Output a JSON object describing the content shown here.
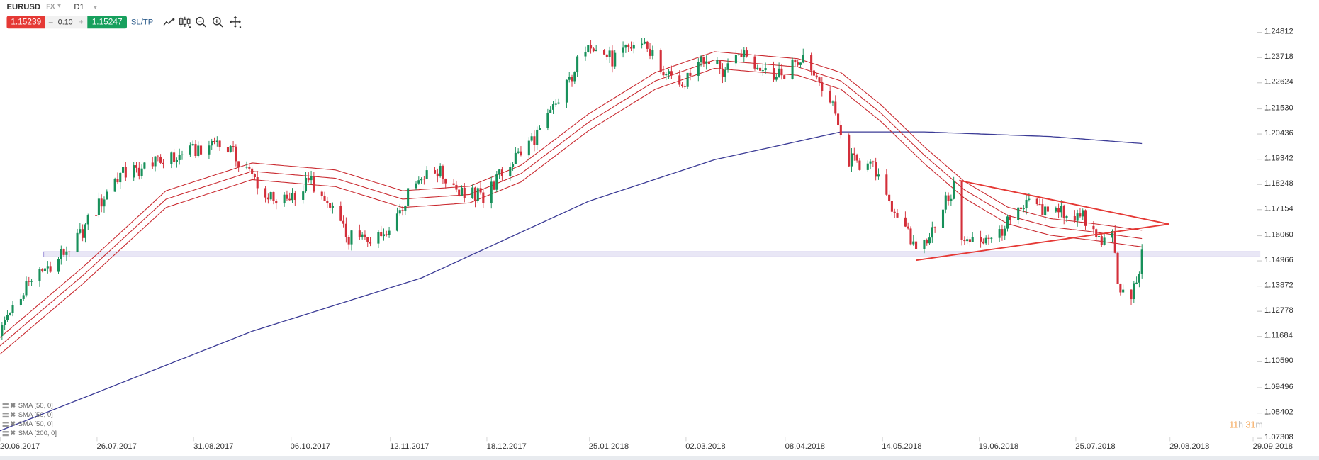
{
  "header": {
    "symbol": "EURUSD",
    "market": "FX",
    "timeframe": "D1"
  },
  "trade": {
    "sell_price": "1.15239",
    "minus": "–",
    "volume": "0.10",
    "plus": "+",
    "buy_price": "1.15247",
    "sltp_label": "SL/TP"
  },
  "tools": [
    "line-chart-icon",
    "candles-icon",
    "zoom-out-icon",
    "zoom-in-icon",
    "crosshair-icon"
  ],
  "legend": [
    {
      "label": "SMA [50, 0]"
    },
    {
      "label": "SMA [50, 0]"
    },
    {
      "label": "SMA [50, 0]"
    },
    {
      "label": "SMA [200, 0]"
    }
  ],
  "countdown": {
    "hours": "11",
    "h": "h",
    "minutes": "31",
    "m": "m"
  },
  "colors": {
    "up": "#17905a",
    "down": "#d32f3a",
    "sma50": "#c9282e",
    "sma200": "#3b3b96",
    "band": "#9c90d8",
    "triangle": "#e53935"
  },
  "chart_data": {
    "type": "candlestick",
    "title": "EURUSD D1",
    "y_ticks": [
      "1.24812",
      "1.23718",
      "1.22624",
      "1.21530",
      "1.20436",
      "1.19342",
      "1.18248",
      "1.17154",
      "1.16060",
      "1.14966",
      "1.13872",
      "1.12778",
      "1.11684",
      "1.10590",
      "1.09496",
      "1.08402",
      "1.07308"
    ],
    "ylim": [
      1.07308,
      1.24812
    ],
    "x_ticks": [
      "20.06.2017",
      "26.07.2017",
      "31.08.2017",
      "06.10.2017",
      "12.11.2017",
      "18.12.2017",
      "25.01.2018",
      "02.03.2018",
      "08.04.2018",
      "14.05.2018",
      "19.06.2018",
      "25.07.2018",
      "29.08.2018",
      "29.09.2018"
    ],
    "x_tick_days": [
      0,
      36,
      72,
      108,
      145,
      181,
      219,
      255,
      292,
      328,
      364,
      400,
      435,
      466
    ],
    "close_path_day_price": [
      [
        -9,
        1.117
      ],
      [
        1,
        1.139
      ],
      [
        19,
        1.157
      ],
      [
        35,
        1.186
      ],
      [
        60,
        1.195
      ],
      [
        73,
        1.202
      ],
      [
        88,
        1.182
      ],
      [
        94,
        1.173
      ],
      [
        107,
        1.184
      ],
      [
        121,
        1.159
      ],
      [
        132,
        1.159
      ],
      [
        151,
        1.191
      ],
      [
        163,
        1.179
      ],
      [
        171,
        1.177
      ],
      [
        182,
        1.193
      ],
      [
        191,
        1.204
      ],
      [
        201,
        1.222
      ],
      [
        210,
        1.245
      ],
      [
        219,
        1.236
      ],
      [
        230,
        1.245
      ],
      [
        238,
        1.231
      ],
      [
        244,
        1.222
      ],
      [
        251,
        1.238
      ],
      [
        260,
        1.231
      ],
      [
        268,
        1.24
      ],
      [
        279,
        1.227
      ],
      [
        291,
        1.238
      ],
      [
        301,
        1.215
      ],
      [
        307,
        1.193
      ],
      [
        316,
        1.189
      ],
      [
        329,
        1.16
      ],
      [
        333,
        1.153
      ],
      [
        341,
        1.171
      ],
      [
        348,
        1.184
      ],
      [
        349,
        1.157
      ],
      [
        357,
        1.159
      ],
      [
        365,
        1.164
      ],
      [
        373,
        1.173
      ],
      [
        385,
        1.171
      ],
      [
        394,
        1.168
      ],
      [
        401,
        1.157
      ],
      [
        405,
        1.16
      ],
      [
        407,
        1.139
      ],
      [
        410,
        1.133
      ],
      [
        413,
        1.137
      ],
      [
        416,
        1.151
      ]
    ],
    "sma50_day_price": [
      [
        -9,
        1.1125
      ],
      [
        22,
        1.143
      ],
      [
        53,
        1.176
      ],
      [
        85,
        1.188
      ],
      [
        116,
        1.185
      ],
      [
        141,
        1.176
      ],
      [
        166,
        1.178
      ],
      [
        185,
        1.187
      ],
      [
        210,
        1.209
      ],
      [
        235,
        1.227
      ],
      [
        257,
        1.236
      ],
      [
        288,
        1.233
      ],
      [
        304,
        1.227
      ],
      [
        319,
        1.213
      ],
      [
        335,
        1.195
      ],
      [
        350,
        1.18
      ],
      [
        366,
        1.169
      ],
      [
        382,
        1.164
      ],
      [
        397,
        1.162
      ],
      [
        416,
        1.159
      ]
    ],
    "sma50_band_offset": 0.0036,
    "sma200_day_price": [
      [
        -9,
        1.076
      ],
      [
        85,
        1.119
      ],
      [
        148,
        1.142
      ],
      [
        210,
        1.175
      ],
      [
        257,
        1.193
      ],
      [
        304,
        1.205
      ],
      [
        335,
        1.205
      ],
      [
        382,
        1.203
      ],
      [
        416,
        1.2
      ]
    ],
    "support_band": [
      1.1511,
      1.1533
    ],
    "triangle": {
      "upper": [
        [
          348,
          1.18405
        ],
        [
          426,
          1.16523
        ]
      ],
      "lower": [
        [
          332,
          1.14966
        ],
        [
          426,
          1.16523
        ]
      ]
    }
  }
}
